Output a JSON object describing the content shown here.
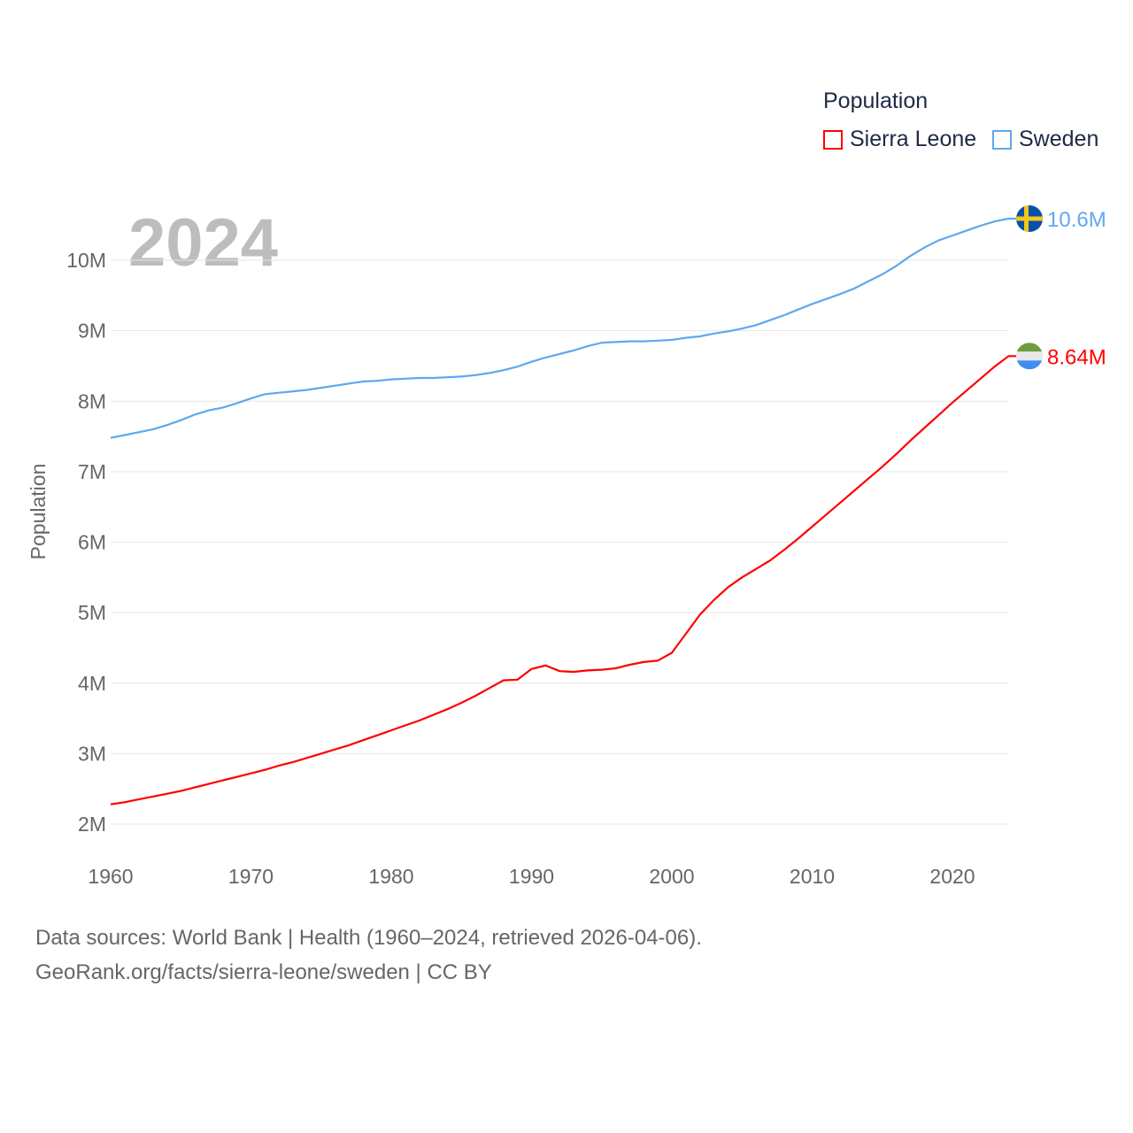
{
  "chart_data": {
    "type": "line",
    "title": "Population",
    "ylabel": "Population",
    "xlabel": "",
    "year_label": "2024",
    "xlim": [
      1960,
      2024
    ],
    "ylim": [
      2000000,
      10000000
    ],
    "x_ticks": [
      1960,
      1970,
      1980,
      1990,
      2000,
      2010,
      2020
    ],
    "x_tick_labels": [
      "1960",
      "1970",
      "1980",
      "1990",
      "2000",
      "2010",
      "2020"
    ],
    "y_ticks": [
      2000000,
      3000000,
      4000000,
      5000000,
      6000000,
      7000000,
      8000000,
      9000000,
      10000000
    ],
    "y_tick_labels": [
      "2M",
      "3M",
      "4M",
      "5M",
      "6M",
      "7M",
      "8M",
      "9M",
      "10M"
    ],
    "grid": true,
    "legend_placement": "top-right",
    "x_start": 1960,
    "series": [
      {
        "name": "Sierra Leone",
        "color": "#ff0000",
        "end_label": "8.64M",
        "flag": "sierra-leone",
        "values_millions": [
          2.28,
          2.31,
          2.35,
          2.39,
          2.43,
          2.47,
          2.52,
          2.57,
          2.62,
          2.67,
          2.72,
          2.77,
          2.83,
          2.88,
          2.94,
          3.0,
          3.06,
          3.12,
          3.19,
          3.26,
          3.33,
          3.4,
          3.47,
          3.55,
          3.63,
          3.72,
          3.82,
          3.93,
          4.04,
          4.05,
          4.2,
          4.25,
          4.17,
          4.16,
          4.18,
          4.19,
          4.21,
          4.26,
          4.3,
          4.32,
          4.43,
          4.7,
          4.97,
          5.18,
          5.36,
          5.5,
          5.62,
          5.74,
          5.89,
          6.05,
          6.22,
          6.39,
          6.56,
          6.73,
          6.9,
          7.07,
          7.25,
          7.44,
          7.62,
          7.8,
          7.98,
          8.15,
          8.32,
          8.49,
          8.64
        ]
      },
      {
        "name": "Sweden",
        "color": "#5ea8f0",
        "end_label": "10.6M",
        "flag": "sweden",
        "values_millions": [
          7.48,
          7.52,
          7.56,
          7.6,
          7.66,
          7.73,
          7.81,
          7.87,
          7.91,
          7.97,
          8.04,
          8.1,
          8.12,
          8.14,
          8.16,
          8.19,
          8.22,
          8.25,
          8.28,
          8.29,
          8.31,
          8.32,
          8.33,
          8.33,
          8.34,
          8.35,
          8.37,
          8.4,
          8.44,
          8.49,
          8.56,
          8.62,
          8.67,
          8.72,
          8.78,
          8.83,
          8.84,
          8.85,
          8.85,
          8.86,
          8.87,
          8.9,
          8.92,
          8.96,
          8.99,
          9.03,
          9.08,
          9.15,
          9.22,
          9.3,
          9.38,
          9.45,
          9.52,
          9.6,
          9.7,
          9.8,
          9.92,
          10.06,
          10.18,
          10.28,
          10.35,
          10.42,
          10.49,
          10.55,
          10.59
        ]
      }
    ]
  },
  "footer": {
    "line1": "Data sources: World Bank | Health (1960–2024, retrieved 2026-04-06).",
    "line2": "GeoRank.org/facts/sierra-leone/sweden | CC BY"
  }
}
